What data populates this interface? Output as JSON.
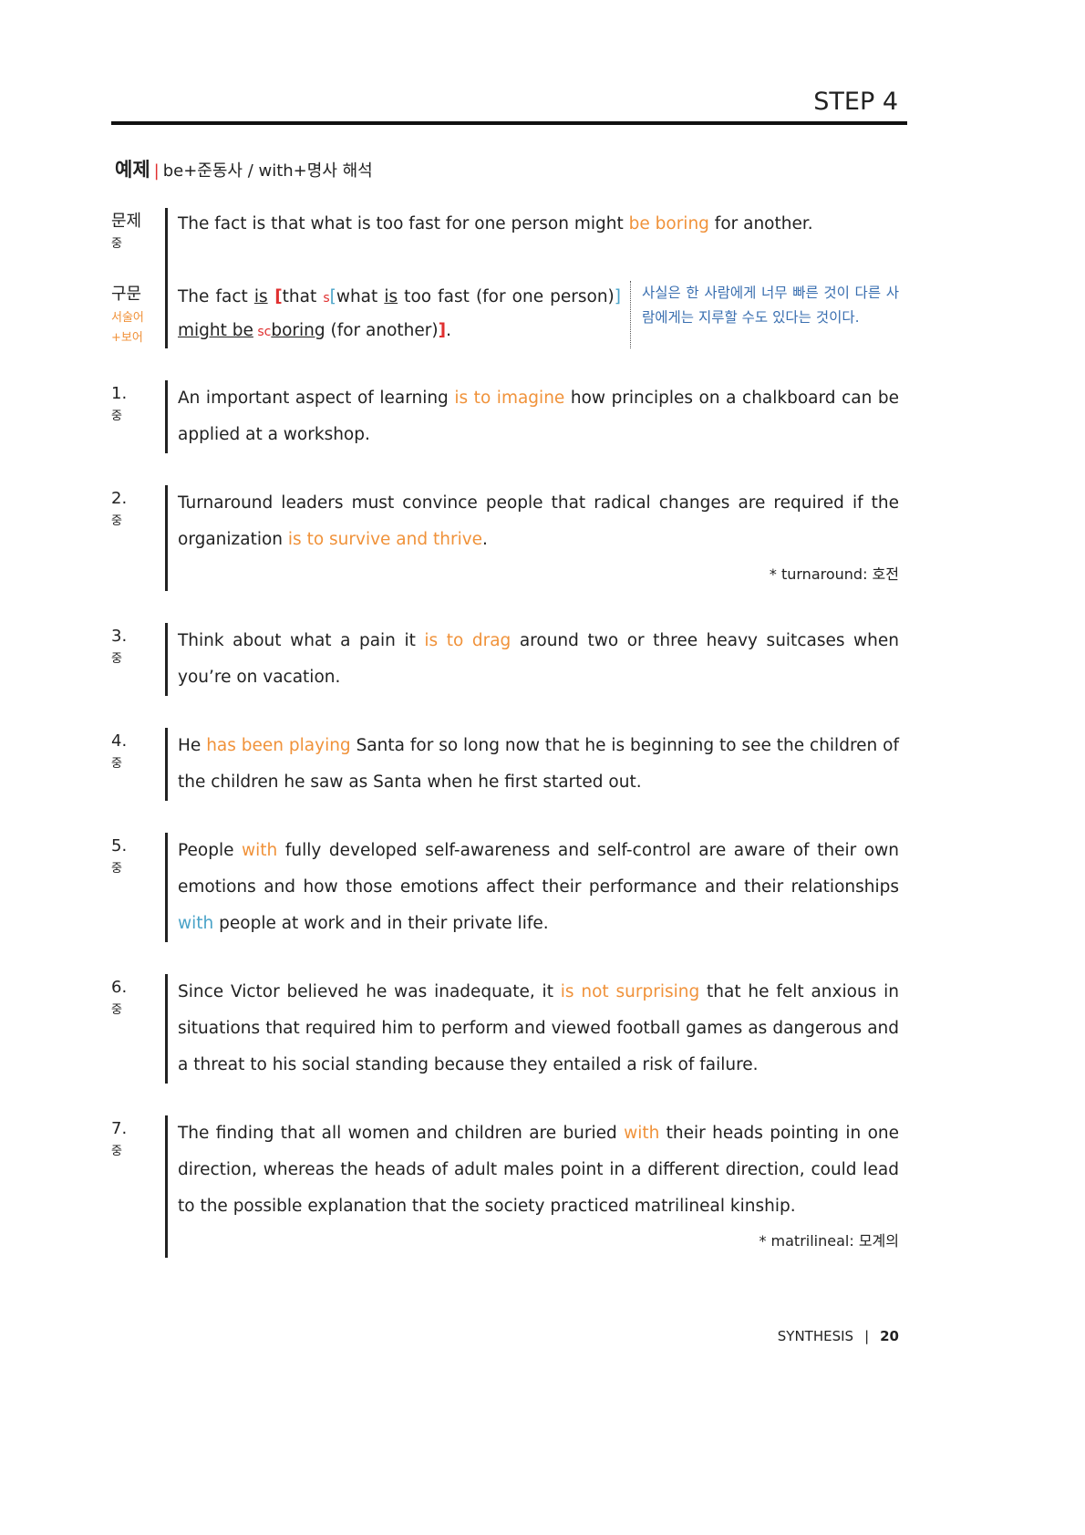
{
  "header": {
    "step": "STEP 4"
  },
  "section": {
    "label": "예제",
    "bar": "|",
    "topic": "be+준동사 / with+명사 해석"
  },
  "example": {
    "problem_label": "문제",
    "problem_level": "중",
    "problem_segments": [
      {
        "text": "The fact is that what is too fast for one person might ",
        "style": "plain"
      },
      {
        "text": "be boring",
        "style": "orange"
      },
      {
        "text": " for another.",
        "style": "plain"
      }
    ],
    "parse_label": "구문",
    "parse_note": [
      "서술어",
      "+보어"
    ],
    "parse_segments": [
      {
        "text": "The fact ",
        "style": "plain"
      },
      {
        "text": "is",
        "style": "underline"
      },
      {
        "text": " [",
        "style": "red"
      },
      {
        "text": "that ",
        "style": "plain"
      },
      {
        "text": "s",
        "style": "red-small"
      },
      {
        "text": "[",
        "style": "blue"
      },
      {
        "text": "what ",
        "style": "plain"
      },
      {
        "text": "is",
        "style": "underline"
      },
      {
        "text": " too fast (for one person)",
        "style": "plain"
      },
      {
        "text": "] ",
        "style": "blue"
      },
      {
        "text": "might be",
        "style": "underline"
      },
      {
        "text": " sc",
        "style": "red-small"
      },
      {
        "text": "boring",
        "style": "underline"
      },
      {
        "text": " (for another)",
        "style": "plain"
      },
      {
        "text": "]",
        "style": "red"
      },
      {
        "text": ".",
        "style": "plain"
      }
    ],
    "translation": "사실은 한 사람에게 너무 빠른 것이 다른 사람에게는 지루할 수도 있다는 것이다."
  },
  "items": [
    {
      "number": "1.",
      "level": "중",
      "segments": [
        {
          "text": "An important aspect of learning ",
          "style": "plain"
        },
        {
          "text": "is to imagine",
          "style": "orange"
        },
        {
          "text": " how principles on a chalkboard can be applied at a workshop.",
          "style": "plain"
        }
      ]
    },
    {
      "number": "2.",
      "level": "중",
      "segments": [
        {
          "text": "Turnaround leaders must convince people that radical changes are required if the organization ",
          "style": "plain"
        },
        {
          "text": "is to survive and thrive",
          "style": "orange"
        },
        {
          "text": ".",
          "style": "plain"
        }
      ],
      "note": "* turnaround: 호전"
    },
    {
      "number": "3.",
      "level": "중",
      "segments": [
        {
          "text": "Think about what a pain it ",
          "style": "plain"
        },
        {
          "text": "is to drag",
          "style": "orange"
        },
        {
          "text": " around two or three heavy suitcases when you’re on vacation.",
          "style": "plain"
        }
      ]
    },
    {
      "number": "4.",
      "level": "중",
      "segments": [
        {
          "text": "He ",
          "style": "plain"
        },
        {
          "text": "has been playing",
          "style": "orange"
        },
        {
          "text": " Santa for so long now that he is beginning to see the children of the children he saw as Santa when he first started out.",
          "style": "plain"
        }
      ]
    },
    {
      "number": "5.",
      "level": "중",
      "segments": [
        {
          "text": "People ",
          "style": "plain"
        },
        {
          "text": "with",
          "style": "orange"
        },
        {
          "text": " fully developed self-awareness and self-control are aware of their own emotions and how those emotions affect their performance and their relationships ",
          "style": "plain"
        },
        {
          "text": "with",
          "style": "blue"
        },
        {
          "text": " people at work and in their private life.",
          "style": "plain"
        }
      ]
    },
    {
      "number": "6.",
      "level": "중",
      "segments": [
        {
          "text": "Since Victor believed he was inadequate, it ",
          "style": "plain"
        },
        {
          "text": "is not surprising",
          "style": "orange"
        },
        {
          "text": " that he felt anxious in situations that required him to perform and viewed football games as dangerous and a threat to his social standing because they entailed a risk of failure.",
          "style": "plain"
        }
      ]
    },
    {
      "number": "7.",
      "level": "중",
      "segments": [
        {
          "text": "The finding that all women and children are buried ",
          "style": "plain"
        },
        {
          "text": "with",
          "style": "orange"
        },
        {
          "text": " their heads pointing in one direction, whereas the heads of adult males point in a different direction, could lead to the possible explanation that the society practiced matrilineal kinship.",
          "style": "plain"
        }
      ],
      "note": "* matrilineal: 모계의"
    }
  ],
  "footer": {
    "book": "SYNTHESIS",
    "separator": "|",
    "page": "20"
  }
}
